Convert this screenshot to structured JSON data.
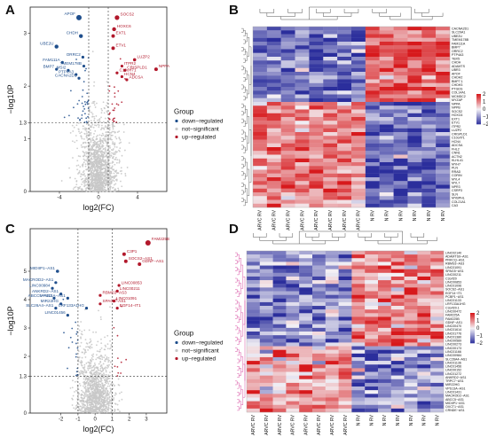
{
  "colors": {
    "down": "#1f4e8c",
    "up": "#b2182b",
    "ns": "#c8c8c8",
    "hm_low": "#2b2e9c",
    "hm_mid": "#f4f2f6",
    "hm_high": "#d7191c"
  },
  "panels": {
    "A": {
      "letter": "A"
    },
    "B": {
      "letter": "B"
    },
    "C": {
      "letter": "C"
    },
    "D": {
      "letter": "D"
    }
  },
  "chart_data": [
    {
      "panel": "A",
      "type": "scatter",
      "xlabel": "log2(FC)",
      "ylabel": "−log10P",
      "xlim": [
        -7,
        7
      ],
      "ylim": [
        0,
        3.5
      ],
      "x_ticks": [
        "-4",
        "0",
        "4"
      ],
      "y_ticks": [
        "0",
        "1",
        "1.3",
        "2",
        "3"
      ],
      "threshold_y": 1.3,
      "threshold_x": [
        -1,
        1
      ],
      "legend": {
        "title": "Group",
        "items": [
          {
            "label": "down−regulated",
            "key": "down"
          },
          {
            "label": "not−significant",
            "key": "ns"
          },
          {
            "label": "up−regulated",
            "key": "up"
          }
        ]
      },
      "labeled_points": [
        {
          "label": "APOF",
          "x": -2.0,
          "y": 3.3,
          "group": "down",
          "size": 3.0
        },
        {
          "label": "CHDH",
          "x": -1.8,
          "y": 2.95,
          "group": "down",
          "size": 2.2
        },
        {
          "label": "UBE2U",
          "x": -4.3,
          "y": 2.75,
          "group": "down",
          "size": 2.2
        },
        {
          "label": "ORRC2",
          "x": -1.6,
          "y": 2.55,
          "group": "down",
          "size": 1.6
        },
        {
          "label": "FAM111A",
          "x": -3.7,
          "y": 2.45,
          "group": "down",
          "size": 1.6
        },
        {
          "label": "TMEM178B",
          "x": -1.5,
          "y": 2.38,
          "group": "down",
          "size": 1.6
        },
        {
          "label": "MSI2",
          "x": -3.1,
          "y": 2.3,
          "group": "down",
          "size": 1.6
        },
        {
          "label": "BMP7",
          "x": -4.3,
          "y": 2.32,
          "group": "down",
          "size": 1.6
        },
        {
          "label": "PTP4A3",
          "x": -2.3,
          "y": 2.22,
          "group": "down",
          "size": 1.6
        },
        {
          "label": "CACNA2D1",
          "x": -2.0,
          "y": 2.15,
          "group": "down",
          "size": 1.6
        },
        {
          "label": "SOCS2",
          "x": 1.9,
          "y": 3.3,
          "group": "up",
          "size": 2.6
        },
        {
          "label": "HOXC6",
          "x": 1.6,
          "y": 3.08,
          "group": "up",
          "size": 2.2
        },
        {
          "label": "EXT1",
          "x": 1.5,
          "y": 2.95,
          "group": "up",
          "size": 2.0
        },
        {
          "label": "ETV1",
          "x": 1.5,
          "y": 2.72,
          "group": "up",
          "size": 2.0
        },
        {
          "label": "LUZP2",
          "x": 3.7,
          "y": 2.5,
          "group": "up",
          "size": 1.8
        },
        {
          "label": "NPPA",
          "x": 5.9,
          "y": 2.32,
          "group": "up",
          "size": 2.0
        },
        {
          "label": "ITPR2",
          "x": 2.4,
          "y": 2.38,
          "group": "up",
          "size": 1.6
        },
        {
          "label": "CRISPLD1",
          "x": 2.7,
          "y": 2.3,
          "group": "up",
          "size": 1.6
        },
        {
          "label": "C10orf71",
          "x": 1.9,
          "y": 2.25,
          "group": "up",
          "size": 1.6
        },
        {
          "label": "HCN4",
          "x": 2.4,
          "y": 2.18,
          "group": "up",
          "size": 1.6
        },
        {
          "label": "ADCSA",
          "x": 2.9,
          "y": 2.12,
          "group": "up",
          "size": 1.6
        }
      ]
    },
    {
      "panel": "C",
      "type": "scatter",
      "xlabel": "log2(FC)",
      "ylabel": "−log10P",
      "xlim": [
        -3.8,
        4.2
      ],
      "ylim": [
        0,
        6.5
      ],
      "x_ticks": [
        "-2",
        "-1",
        "0",
        "1",
        "2",
        "3"
      ],
      "y_ticks": [
        "0",
        "1.3",
        "2",
        "3",
        "4",
        "5"
      ],
      "threshold_y": 1.3,
      "threshold_x": [
        -1,
        1
      ],
      "legend": {
        "title": "Group",
        "items": [
          {
            "label": "down−regulated",
            "key": "down"
          },
          {
            "label": "not−significant",
            "key": "ns"
          },
          {
            "label": "up−regulated",
            "key": "up"
          }
        ]
      },
      "labeled_points": [
        {
          "label": "MIDIIP1−AS1",
          "x": -2.2,
          "y": 5.0,
          "group": "down",
          "size": 1.8
        },
        {
          "label": "MACROD2−AS1",
          "x": -2.3,
          "y": 4.6,
          "group": "down",
          "size": 1.6
        },
        {
          "label": "LINC00984",
          "x": -2.5,
          "y": 4.4,
          "group": "down",
          "size": 1.6
        },
        {
          "label": "ANKRD2−AS1",
          "x": -2.0,
          "y": 4.2,
          "group": "down",
          "size": 1.6
        },
        {
          "label": "ABCC5−AS1",
          "x": -2.4,
          "y": 4.05,
          "group": "down",
          "size": 1.6
        },
        {
          "label": "VPS13A−AS1",
          "x": -1.6,
          "y": 4.05,
          "group": "down",
          "size": 1.6
        },
        {
          "label": "MIR22HG",
          "x": -2.0,
          "y": 3.85,
          "group": "down",
          "size": 1.6
        },
        {
          "label": "SLC26A4−AS1",
          "x": -2.3,
          "y": 3.7,
          "group": "down",
          "size": 1.6
        },
        {
          "label": "LINC01456",
          "x": -1.6,
          "y": 3.45,
          "group": "down",
          "size": 1.6
        },
        {
          "label": "LRF133A1HG",
          "x": -0.5,
          "y": 3.7,
          "group": "down",
          "size": 1.6
        },
        {
          "label": "FAM225B",
          "x": 3.1,
          "y": 6.0,
          "group": "up",
          "size": 3.0
        },
        {
          "label": "C3P1",
          "x": 1.7,
          "y": 5.6,
          "group": "up",
          "size": 2.0
        },
        {
          "label": "SOCS2−AS1",
          "x": 1.8,
          "y": 5.35,
          "group": "up",
          "size": 2.0
        },
        {
          "label": "GDNF−AS1",
          "x": 2.6,
          "y": 5.25,
          "group": "up",
          "size": 2.0
        },
        {
          "label": "LINC00853",
          "x": 1.4,
          "y": 4.5,
          "group": "up",
          "size": 1.6
        },
        {
          "label": "LINC00211",
          "x": 1.3,
          "y": 4.3,
          "group": "up",
          "size": 1.6
        },
        {
          "label": "RBMS3−AS3",
          "x": 0.3,
          "y": 4.15,
          "group": "up",
          "size": 1.6
        },
        {
          "label": "LINC01091",
          "x": 1.1,
          "y": 3.95,
          "group": "up",
          "size": 1.6
        },
        {
          "label": "SPAG5−AS1",
          "x": 0.3,
          "y": 3.85,
          "group": "up",
          "size": 1.6
        },
        {
          "label": "EGF14−IT1",
          "x": 1.3,
          "y": 3.7,
          "group": "up",
          "size": 1.6
        }
      ]
    },
    {
      "panel": "B",
      "type": "heatmap",
      "columns": [
        "ARVC RV",
        "ARVC RV",
        "ARVC RV",
        "ARVC RV",
        "ARVC RV",
        "ARVC RV",
        "ARVC RV",
        "ARVC RV",
        "N RV",
        "N RV",
        "N RV",
        "N RV",
        "N RV",
        "N RV"
      ],
      "row_labels": [
        "CACNA2D1",
        "SLC29A1",
        "UBE2U",
        "TMEM178B",
        "FAM111A",
        "BMP7",
        "ORRC2",
        "PTP4A3",
        "TBX5",
        "CHDH",
        "ADAMTS",
        "UBR3",
        "APOF",
        "CHDH2",
        "BMP7.1",
        "CHDH3",
        "PTGDS",
        "COL14A1",
        "MCMDC2",
        "MYZAP",
        "NPPA",
        "NPPB",
        "SOCS2",
        "HOXC6",
        "EXT1",
        "ETV1",
        "ITPR2",
        "LUZP2",
        "CRISPLD1",
        "C10orf71",
        "HCN4",
        "ADCSA",
        "FHL2",
        "CNN1",
        "ACTN2",
        "KLHL41",
        "MYH7",
        "PLN",
        "RRAD",
        "CORIN",
        "MYL4",
        "MYL7",
        "NPR3",
        "CSRP3",
        "SLN",
        "MYBPHL",
        "COL21A1",
        "CA3"
      ],
      "color_scale": {
        "min": -2,
        "max": 2,
        "ticks": [
          "2",
          "1",
          "0",
          "−1",
          "−2"
        ]
      }
    },
    {
      "panel": "D",
      "type": "heatmap",
      "columns": [
        "ARVC RV",
        "ARVC RV",
        "ARVC RV",
        "ARVC RV",
        "ARVC RV",
        "ARVC RV",
        "ARVC RV",
        "ARVC RV",
        "N RV",
        "N RV",
        "N RV",
        "N RV",
        "N RV",
        "N RV",
        "N RV"
      ],
      "row_labels": [
        "LINC02140",
        "ADAMTS9−AS1",
        "PRKCQ−AS1",
        "RBMS3−AS3",
        "LINC01091",
        "SPAG5−AS1",
        "LINC00211",
        "C3orf20",
        "LINC00853",
        "LINC01096",
        "SOCS2−AS1",
        "EGF14−IT1",
        "PCBP1−AS1",
        "LINC01133",
        "LRF133A1HG",
        "C3orf20.1",
        "LINC00472",
        "FAM225A",
        "FAM225B",
        "GDNF−AS1",
        "LINC00470",
        "LINC01614",
        "LINC01776",
        "LINC01380",
        "LINC00589",
        "LINC00273",
        "LINC00173",
        "LINC01166",
        "LINC00984",
        "SLC26A4−AS1",
        "LINC01136",
        "LINC01456",
        "LINC00152",
        "LINC01272",
        "ANKRD2−AS1",
        "TRPC7−AS1",
        "MIR22HG",
        "VPS13A−AS1",
        "LINC01431",
        "MACROD2−AS1",
        "ABCC5−AS1",
        "MIDIIP1−AS1",
        "OXCT1−AS1",
        "CRNDE−AS1"
      ],
      "color_scale": {
        "min": -2,
        "max": 2,
        "ticks": [
          "2",
          "1",
          "0",
          "−1",
          "−2"
        ]
      }
    }
  ]
}
